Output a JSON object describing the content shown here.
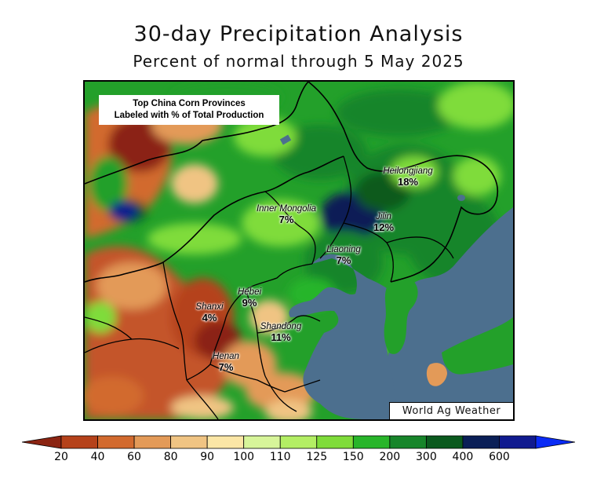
{
  "title": "30-day Precipitation Analysis",
  "subtitle": "Percent of normal through 5 May 2025",
  "info_box": {
    "line1": "Top China Corn Provinces",
    "line2": "Labeled with % of Total Production"
  },
  "credit": "World Ag Weather",
  "provinces": [
    {
      "name": "Heilongjiang",
      "percent": "18%"
    },
    {
      "name": "Inner Mongolia",
      "percent": "7%"
    },
    {
      "name": "Jilin",
      "percent": "12%"
    },
    {
      "name": "Liaoning",
      "percent": "7%"
    },
    {
      "name": "Hebei",
      "percent": "9%"
    },
    {
      "name": "Shanxi",
      "percent": "4%"
    },
    {
      "name": "Shandong",
      "percent": "11%"
    },
    {
      "name": "Henan",
      "percent": "7%"
    }
  ],
  "legend": {
    "ticks": [
      "20",
      "40",
      "60",
      "80",
      "90",
      "100",
      "110",
      "125",
      "150",
      "200",
      "300",
      "400",
      "600"
    ],
    "colors": [
      "#8b2412",
      "#b5421a",
      "#d26a2e",
      "#e39a58",
      "#f0c483",
      "#fbe6a6",
      "#d7f59a",
      "#b3ee64",
      "#7fdc3a",
      "#28b52a",
      "#17852a",
      "#0b5a1e",
      "#0a1f57",
      "#101a8f",
      "#0a2bf5"
    ]
  }
}
